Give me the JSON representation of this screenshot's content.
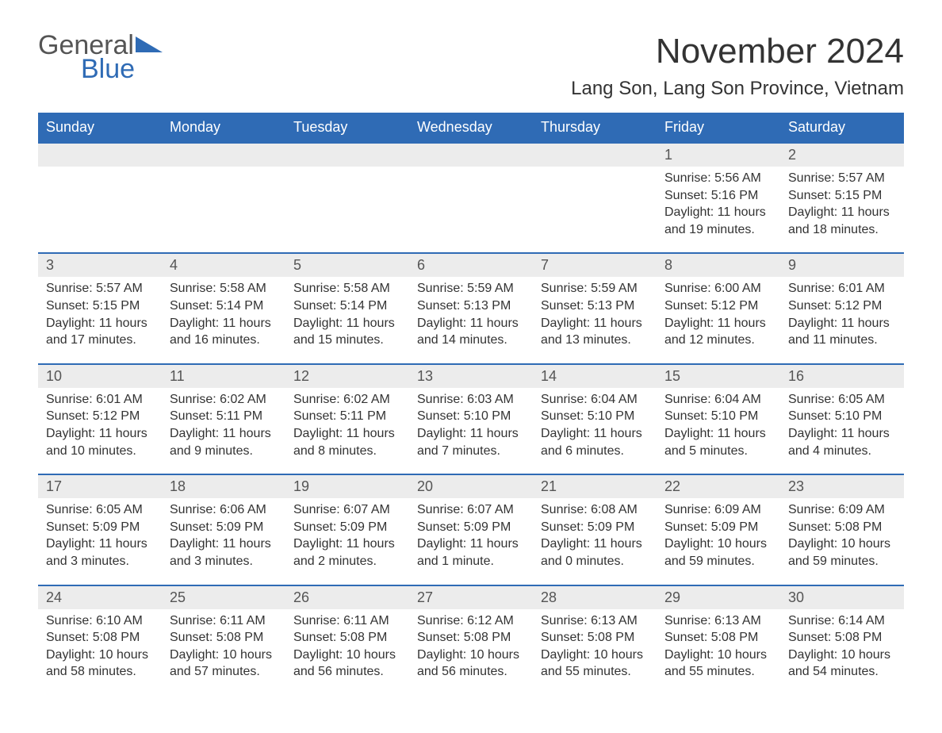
{
  "brand": {
    "part1": "General",
    "part2": "Blue",
    "accent_color": "#2f6bb5"
  },
  "title": "November 2024",
  "location": "Lang Son, Lang Son Province, Vietnam",
  "calendar": {
    "header_bg": "#2f6bb5",
    "header_fg": "#ffffff",
    "daynum_bg": "#ececec",
    "border_color": "#2f6bb5",
    "text_color": "#333333",
    "font_family": "Arial",
    "title_fontsize": 44,
    "location_fontsize": 24,
    "header_fontsize": 18,
    "body_fontsize": 16,
    "day_names": [
      "Sunday",
      "Monday",
      "Tuesday",
      "Wednesday",
      "Thursday",
      "Friday",
      "Saturday"
    ],
    "weeks": [
      [
        null,
        null,
        null,
        null,
        null,
        {
          "day": "1",
          "sunrise": "5:56 AM",
          "sunset": "5:16 PM",
          "daylight": "11 hours and 19 minutes."
        },
        {
          "day": "2",
          "sunrise": "5:57 AM",
          "sunset": "5:15 PM",
          "daylight": "11 hours and 18 minutes."
        }
      ],
      [
        {
          "day": "3",
          "sunrise": "5:57 AM",
          "sunset": "5:15 PM",
          "daylight": "11 hours and 17 minutes."
        },
        {
          "day": "4",
          "sunrise": "5:58 AM",
          "sunset": "5:14 PM",
          "daylight": "11 hours and 16 minutes."
        },
        {
          "day": "5",
          "sunrise": "5:58 AM",
          "sunset": "5:14 PM",
          "daylight": "11 hours and 15 minutes."
        },
        {
          "day": "6",
          "sunrise": "5:59 AM",
          "sunset": "5:13 PM",
          "daylight": "11 hours and 14 minutes."
        },
        {
          "day": "7",
          "sunrise": "5:59 AM",
          "sunset": "5:13 PM",
          "daylight": "11 hours and 13 minutes."
        },
        {
          "day": "8",
          "sunrise": "6:00 AM",
          "sunset": "5:12 PM",
          "daylight": "11 hours and 12 minutes."
        },
        {
          "day": "9",
          "sunrise": "6:01 AM",
          "sunset": "5:12 PM",
          "daylight": "11 hours and 11 minutes."
        }
      ],
      [
        {
          "day": "10",
          "sunrise": "6:01 AM",
          "sunset": "5:12 PM",
          "daylight": "11 hours and 10 minutes."
        },
        {
          "day": "11",
          "sunrise": "6:02 AM",
          "sunset": "5:11 PM",
          "daylight": "11 hours and 9 minutes."
        },
        {
          "day": "12",
          "sunrise": "6:02 AM",
          "sunset": "5:11 PM",
          "daylight": "11 hours and 8 minutes."
        },
        {
          "day": "13",
          "sunrise": "6:03 AM",
          "sunset": "5:10 PM",
          "daylight": "11 hours and 7 minutes."
        },
        {
          "day": "14",
          "sunrise": "6:04 AM",
          "sunset": "5:10 PM",
          "daylight": "11 hours and 6 minutes."
        },
        {
          "day": "15",
          "sunrise": "6:04 AM",
          "sunset": "5:10 PM",
          "daylight": "11 hours and 5 minutes."
        },
        {
          "day": "16",
          "sunrise": "6:05 AM",
          "sunset": "5:10 PM",
          "daylight": "11 hours and 4 minutes."
        }
      ],
      [
        {
          "day": "17",
          "sunrise": "6:05 AM",
          "sunset": "5:09 PM",
          "daylight": "11 hours and 3 minutes."
        },
        {
          "day": "18",
          "sunrise": "6:06 AM",
          "sunset": "5:09 PM",
          "daylight": "11 hours and 3 minutes."
        },
        {
          "day": "19",
          "sunrise": "6:07 AM",
          "sunset": "5:09 PM",
          "daylight": "11 hours and 2 minutes."
        },
        {
          "day": "20",
          "sunrise": "6:07 AM",
          "sunset": "5:09 PM",
          "daylight": "11 hours and 1 minute."
        },
        {
          "day": "21",
          "sunrise": "6:08 AM",
          "sunset": "5:09 PM",
          "daylight": "11 hours and 0 minutes."
        },
        {
          "day": "22",
          "sunrise": "6:09 AM",
          "sunset": "5:09 PM",
          "daylight": "10 hours and 59 minutes."
        },
        {
          "day": "23",
          "sunrise": "6:09 AM",
          "sunset": "5:08 PM",
          "daylight": "10 hours and 59 minutes."
        }
      ],
      [
        {
          "day": "24",
          "sunrise": "6:10 AM",
          "sunset": "5:08 PM",
          "daylight": "10 hours and 58 minutes."
        },
        {
          "day": "25",
          "sunrise": "6:11 AM",
          "sunset": "5:08 PM",
          "daylight": "10 hours and 57 minutes."
        },
        {
          "day": "26",
          "sunrise": "6:11 AM",
          "sunset": "5:08 PM",
          "daylight": "10 hours and 56 minutes."
        },
        {
          "day": "27",
          "sunrise": "6:12 AM",
          "sunset": "5:08 PM",
          "daylight": "10 hours and 56 minutes."
        },
        {
          "day": "28",
          "sunrise": "6:13 AM",
          "sunset": "5:08 PM",
          "daylight": "10 hours and 55 minutes."
        },
        {
          "day": "29",
          "sunrise": "6:13 AM",
          "sunset": "5:08 PM",
          "daylight": "10 hours and 55 minutes."
        },
        {
          "day": "30",
          "sunrise": "6:14 AM",
          "sunset": "5:08 PM",
          "daylight": "10 hours and 54 minutes."
        }
      ]
    ],
    "labels": {
      "sunrise": "Sunrise:",
      "sunset": "Sunset:",
      "daylight": "Daylight:"
    }
  }
}
